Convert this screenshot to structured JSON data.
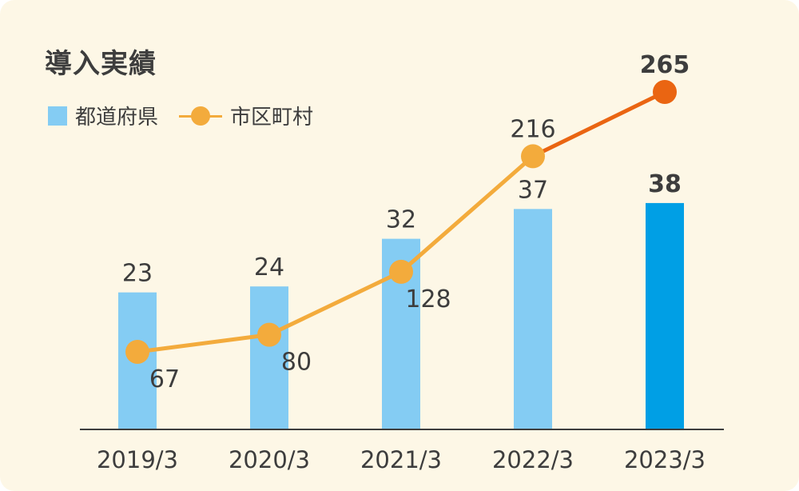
{
  "chart_data": {
    "type": "bar+line",
    "title": "導入実績",
    "categories": [
      "2019/3",
      "2020/3",
      "2021/3",
      "2022/3",
      "2023/3"
    ],
    "series": [
      {
        "name": "都道府県",
        "type": "bar",
        "values": [
          23,
          24,
          32,
          37,
          38
        ],
        "labels": [
          "23",
          "24",
          "32",
          "37",
          "38"
        ]
      },
      {
        "name": "市区町村",
        "type": "line",
        "values": [
          67,
          80,
          128,
          216,
          265
        ],
        "labels": [
          "67",
          "80",
          "128",
          "216",
          "265"
        ]
      }
    ],
    "legend_position": "top-left",
    "grid": false,
    "highlight_last": true
  },
  "colors": {
    "bar": "#84ccf3",
    "bar_highlight": "#009fe5",
    "line": "#f3ab3c",
    "line_highlight": "#ea6512",
    "text": "#3d3d3d",
    "axis": "#3d3d3d"
  }
}
